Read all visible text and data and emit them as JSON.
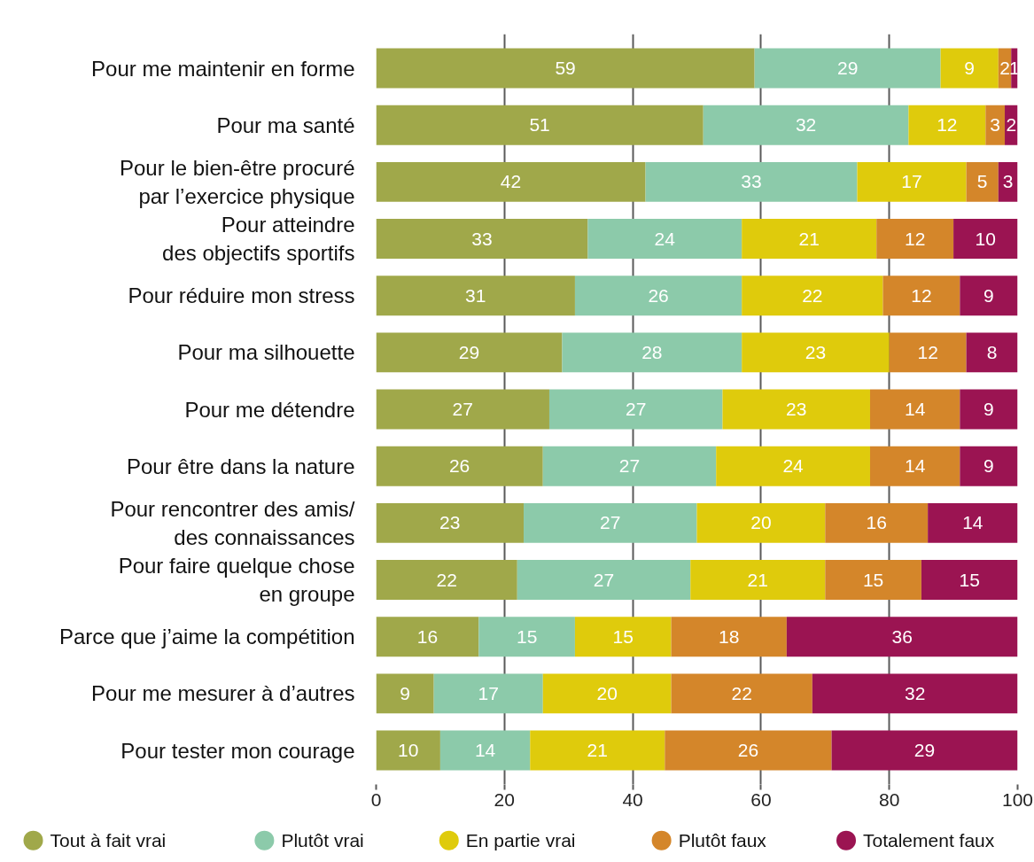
{
  "chart_data": {
    "type": "bar",
    "orientation": "horizontal",
    "stacked": true,
    "categories": [
      "Pour me maintenir en forme",
      "Pour ma santé",
      "Pour le bien-être procuré\npar l’exercice physique",
      "Pour atteindre\ndes objectifs sportifs",
      "Pour réduire mon stress",
      "Pour ma silhouette",
      "Pour me détendre",
      "Pour être dans la nature",
      "Pour rencontrer des amis/\ndes connaissances",
      "Pour faire quelque chose\nen groupe",
      "Parce que j’aime la compétition",
      "Pour me mesurer à d’autres",
      "Pour tester mon courage"
    ],
    "series": [
      {
        "name": "Tout à fait vrai",
        "color": "#a0a84a",
        "values": [
          59,
          51,
          42,
          33,
          31,
          29,
          27,
          26,
          23,
          22,
          16,
          9,
          10
        ]
      },
      {
        "name": "Plutôt vrai",
        "color": "#8ccaaa",
        "values": [
          29,
          32,
          33,
          24,
          26,
          28,
          27,
          27,
          27,
          27,
          15,
          17,
          14
        ]
      },
      {
        "name": "En partie vrai",
        "color": "#dfcb0c",
        "values": [
          9,
          12,
          17,
          21,
          22,
          23,
          23,
          24,
          20,
          21,
          15,
          20,
          21
        ]
      },
      {
        "name": "Plutôt faux",
        "color": "#d4862a",
        "values": [
          2,
          3,
          5,
          12,
          12,
          12,
          14,
          14,
          16,
          15,
          18,
          22,
          26
        ]
      },
      {
        "name": "Totalement faux",
        "color": "#9b1452",
        "values": [
          1,
          2,
          3,
          10,
          9,
          8,
          9,
          9,
          14,
          15,
          36,
          32,
          29
        ]
      }
    ],
    "xlim": [
      0,
      100
    ],
    "xticks": [
      0,
      20,
      40,
      60,
      80,
      100
    ],
    "grid": "x",
    "legend": "bottom",
    "data_labels": true
  }
}
